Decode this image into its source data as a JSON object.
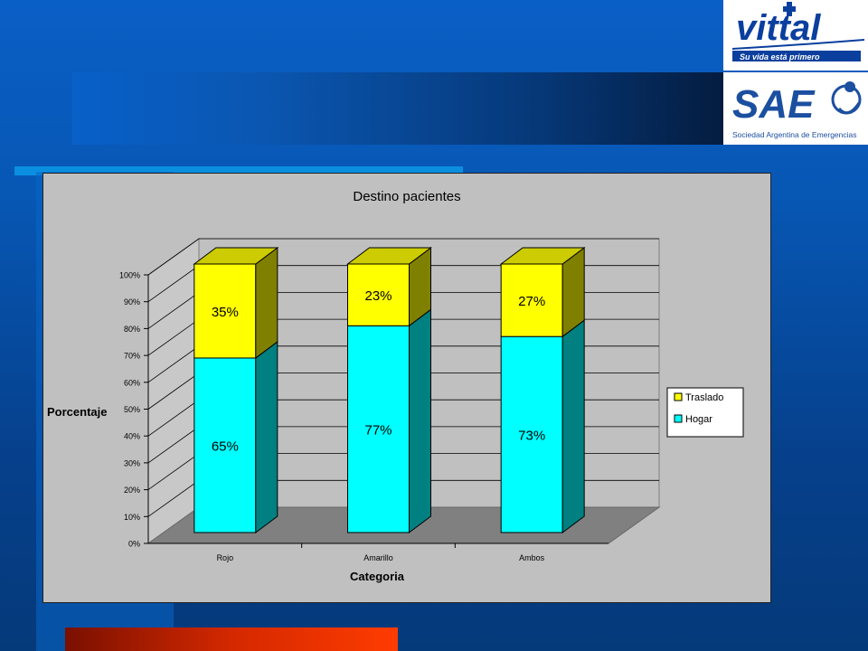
{
  "logos": {
    "vittal": {
      "name": "vittal",
      "tagline": "Su vida está primero"
    },
    "sae": {
      "name": "SAE",
      "subtitle": "Sociedad Argentina de Emergencias"
    }
  },
  "colors": {
    "traslado": "#ffff00",
    "hogar": "#00ffff",
    "panel": "#c0c0c0",
    "floor": "#808080"
  },
  "chart_data": {
    "type": "bar",
    "stacked": true,
    "three_d": true,
    "title": "Destino pacientes",
    "xlabel": "Categoria",
    "ylabel": "Porcentaje",
    "categories": [
      "Rojo",
      "Amarillo",
      "Ambos"
    ],
    "series": [
      {
        "name": "Hogar",
        "values": [
          65,
          77,
          73
        ],
        "labels": [
          "65%",
          "77%",
          "73%"
        ]
      },
      {
        "name": "Traslado",
        "values": [
          35,
          23,
          27
        ],
        "labels": [
          "35%",
          "23%",
          "27%"
        ]
      }
    ],
    "ylim": [
      0,
      100
    ],
    "yticks": [
      "0%",
      "10%",
      "20%",
      "30%",
      "40%",
      "50%",
      "60%",
      "70%",
      "80%",
      "90%",
      "100%"
    ],
    "legend": {
      "position": "right",
      "entries": [
        "Traslado",
        "Hogar"
      ]
    },
    "grid": true
  }
}
